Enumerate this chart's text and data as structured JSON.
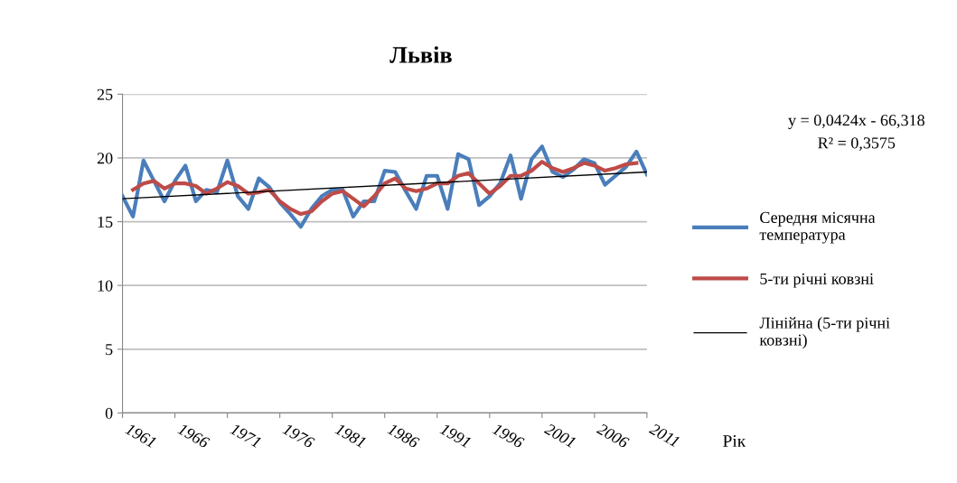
{
  "chart_data": {
    "type": "line",
    "title": "Львів",
    "xlabel": "Рік",
    "xlim": [
      1961,
      2011
    ],
    "xticks": [
      1961,
      1966,
      1971,
      1976,
      1981,
      1986,
      1991,
      1996,
      2001,
      2006,
      2011
    ],
    "ylim": [
      0,
      25
    ],
    "yticks": [
      0,
      5,
      10,
      15,
      20,
      25
    ],
    "grid": "y",
    "legend": "right",
    "marker": "none",
    "line_style": "solid",
    "annotations": [
      "y = 0,0424x - 66,318",
      "R² = 0,3575"
    ],
    "series": [
      {
        "name": "Середня місячна\nтемпература",
        "color": "#4a7ebb",
        "x": [
          1961,
          1962,
          1963,
          1964,
          1965,
          1966,
          1967,
          1968,
          1969,
          1970,
          1971,
          1972,
          1973,
          1974,
          1975,
          1976,
          1977,
          1978,
          1979,
          1980,
          1981,
          1982,
          1983,
          1984,
          1985,
          1986,
          1987,
          1988,
          1989,
          1990,
          1991,
          1992,
          1993,
          1994,
          1995,
          1996,
          1997,
          1998,
          1999,
          2000,
          2001,
          2002,
          2003,
          2004,
          2005,
          2006,
          2007,
          2008,
          2009,
          2010,
          2011
        ],
        "values": [
          17.0,
          15.4,
          19.8,
          18.2,
          16.6,
          18.2,
          19.4,
          16.6,
          17.5,
          17.3,
          19.8,
          17.0,
          16.0,
          18.4,
          17.7,
          16.5,
          15.6,
          14.6,
          16.0,
          17.0,
          17.5,
          17.5,
          15.4,
          16.6,
          16.6,
          19.0,
          18.9,
          17.4,
          16.0,
          18.6,
          18.6,
          16.0,
          20.3,
          19.9,
          16.3,
          17.0,
          18.0,
          20.2,
          16.8,
          19.9,
          20.9,
          18.9,
          18.5,
          19.1,
          19.9,
          19.6,
          17.9,
          18.6,
          19.3,
          20.5,
          18.7
        ]
      },
      {
        "name": "5-ти річні ковзні",
        "color": "#be4b48",
        "x": [
          1962,
          1963,
          1964,
          1965,
          1966,
          1967,
          1968,
          1969,
          1970,
          1971,
          1972,
          1973,
          1974,
          1975,
          1976,
          1977,
          1978,
          1979,
          1980,
          1981,
          1982,
          1983,
          1984,
          1985,
          1986,
          1987,
          1988,
          1989,
          1990,
          1991,
          1992,
          1993,
          1994,
          1995,
          1996,
          1997,
          1998,
          1999,
          2000,
          2001,
          2002,
          2003,
          2004,
          2005,
          2006,
          2007,
          2008,
          2009,
          2010
        ],
        "values": [
          17.5,
          18.0,
          18.2,
          17.6,
          18.0,
          18.0,
          17.8,
          17.2,
          17.6,
          18.1,
          17.8,
          17.2,
          17.3,
          17.5,
          16.6,
          16.0,
          15.6,
          15.8,
          16.6,
          17.2,
          17.4,
          16.8,
          16.2,
          17.0,
          18.0,
          18.4,
          17.6,
          17.4,
          17.6,
          18.0,
          18.0,
          18.6,
          18.8,
          18.0,
          17.2,
          17.8,
          18.6,
          18.6,
          19.0,
          19.7,
          19.2,
          18.9,
          19.2,
          19.6,
          19.4,
          19.0,
          19.2,
          19.5,
          19.6
        ]
      },
      {
        "name": "Лінійна (5-ти річні\nковзні)",
        "color": "#000000",
        "x": [
          1961,
          2011
        ],
        "values": [
          16.8,
          18.9
        ]
      }
    ]
  }
}
